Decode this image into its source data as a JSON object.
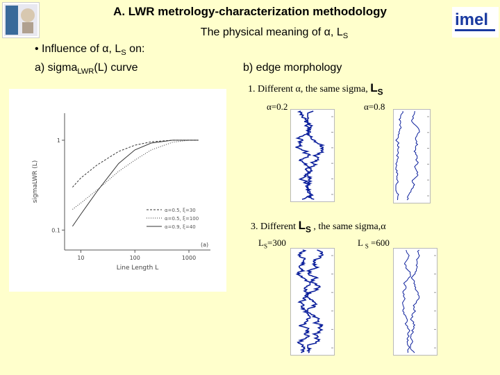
{
  "slide": {
    "title": "A. LWR metrology-characterization methodology",
    "subtitle": "The physical meaning of α, LS",
    "bullet": "• Influence of α, LS on:",
    "label_a": "a) sigmaLWR(L) curve",
    "label_b": "b) edge morphology",
    "case1": "1. Different α, the same sigma, LS",
    "alpha_a": "α=0.2",
    "alpha_b": "α=0.8",
    "case3": "3. Different LS , the same sigma,α",
    "ls_a": "LS=300",
    "ls_b": "L S =600"
  },
  "logos": {
    "left": "university-crest",
    "right": "imel"
  },
  "colors": {
    "background": "#ffffcc",
    "edge_lines": "#0a1e9b"
  },
  "chart_data": {
    "type": "line",
    "xscale": "log",
    "yscale": "log",
    "xlabel": "Line Length L",
    "ylabel": "sigmaLWR (L)",
    "xlim": [
      5,
      2500
    ],
    "ylim": [
      0.06,
      2
    ],
    "xticks": [
      "10",
      "100",
      "1000"
    ],
    "yticks": [
      "0.1",
      "1"
    ],
    "panel_label": "(a)",
    "series": [
      {
        "name": "α=0.5, ξ=30",
        "style": "dash",
        "x": [
          7,
          10,
          20,
          50,
          100,
          200,
          500,
          1000,
          1500
        ],
        "y": [
          0.3,
          0.38,
          0.53,
          0.75,
          0.88,
          0.96,
          1.0,
          1.0,
          1.0
        ]
      },
      {
        "name": "α=0.5, ξ=100",
        "style": "dot",
        "x": [
          7,
          10,
          20,
          50,
          100,
          200,
          500,
          1000,
          1500
        ],
        "y": [
          0.17,
          0.2,
          0.28,
          0.45,
          0.6,
          0.78,
          0.95,
          1.0,
          1.0
        ]
      },
      {
        "name": "α=0.9, ξ=40",
        "style": "solid",
        "x": [
          7,
          10,
          20,
          50,
          100,
          200,
          500,
          1000,
          1500
        ],
        "y": [
          0.11,
          0.15,
          0.27,
          0.55,
          0.78,
          0.93,
          1.0,
          1.0,
          1.0
        ]
      }
    ]
  }
}
